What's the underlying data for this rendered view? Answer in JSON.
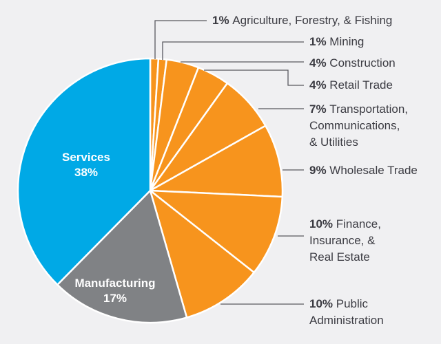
{
  "chart_data": {
    "type": "pie",
    "title": "",
    "start": "top",
    "direction": "clockwise",
    "slices": [
      {
        "name": "Agriculture, Forestry, & Fishing",
        "pct_label": "1%",
        "value": 1,
        "color": "#f7941d",
        "label_lines": [
          "Agriculture, Forestry, & Fishing"
        ]
      },
      {
        "name": "Mining",
        "pct_label": "1%",
        "value": 1,
        "color": "#f7941d",
        "label_lines": [
          "Mining"
        ]
      },
      {
        "name": "Construction",
        "pct_label": "4%",
        "value": 4,
        "color": "#f7941d",
        "label_lines": [
          "Construction"
        ]
      },
      {
        "name": "Retail Trade",
        "pct_label": "4%",
        "value": 4,
        "color": "#f7941d",
        "label_lines": [
          "Retail Trade"
        ]
      },
      {
        "name": "Transportation, Communications, & Utilities",
        "pct_label": "7%",
        "value": 7,
        "color": "#f7941d",
        "label_lines": [
          "Transportation,",
          "Communications,",
          "& Utilities"
        ]
      },
      {
        "name": "Wholesale Trade",
        "pct_label": "9%",
        "value": 9,
        "color": "#f7941d",
        "label_lines": [
          "Wholesale Trade"
        ]
      },
      {
        "name": "Finance, Insurance, & Real Estate",
        "pct_label": "10%",
        "value": 10,
        "color": "#f7941d",
        "label_lines": [
          "Finance,",
          "Insurance, &",
          "Real Estate"
        ]
      },
      {
        "name": "Public Administration",
        "pct_label": "10%",
        "value": 10,
        "color": "#f7941d",
        "label_lines": [
          "Public",
          "Administration"
        ]
      },
      {
        "name": "Manufacturing",
        "pct_label": "17%",
        "value": 17,
        "color": "#808285",
        "inside": true
      },
      {
        "name": "Services",
        "pct_label": "38%",
        "value": 38,
        "color": "#00a9e6",
        "inside": true
      }
    ]
  }
}
